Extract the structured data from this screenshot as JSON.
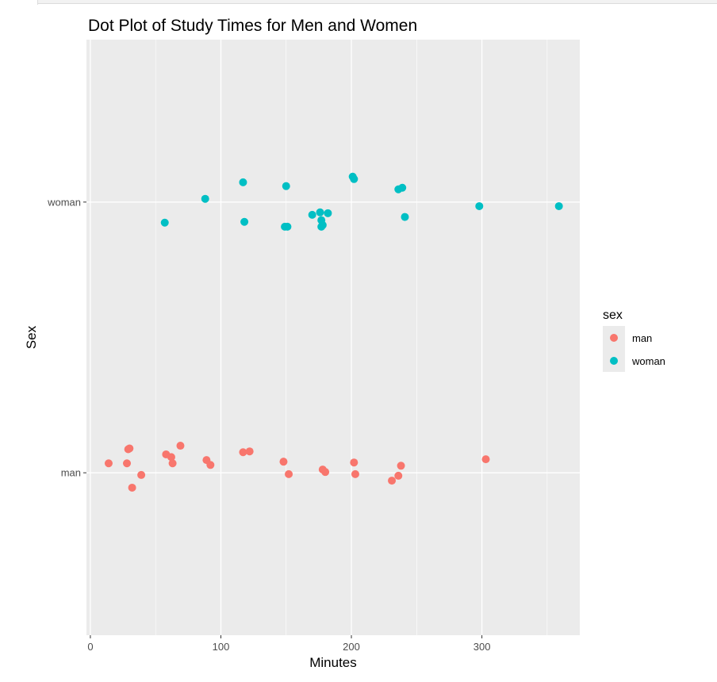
{
  "chart_data": {
    "type": "scatter",
    "title": "Dot Plot of Study Times for Men and Women",
    "xlabel": "Minutes",
    "ylabel": "Sex",
    "xlim": [
      -3,
      375
    ],
    "x_ticks": [
      {
        "value": 0,
        "label": "0"
      },
      {
        "value": 100,
        "label": "100"
      },
      {
        "value": 200,
        "label": "200"
      },
      {
        "value": 300,
        "label": "300"
      }
    ],
    "y_categories": [
      "man",
      "woman"
    ],
    "grid": true,
    "legend": {
      "title": "sex",
      "position": "right",
      "entries": [
        {
          "label": "man",
          "color": "#F8766D"
        },
        {
          "label": "woman",
          "color": "#00BFC4"
        }
      ]
    },
    "series": [
      {
        "name": "man",
        "color": "#F8766D",
        "category": "man",
        "points": [
          {
            "x": 14,
            "jitter": 0.035
          },
          {
            "x": 28,
            "jitter": 0.035
          },
          {
            "x": 29,
            "jitter": 0.087
          },
          {
            "x": 30,
            "jitter": 0.09
          },
          {
            "x": 32,
            "jitter": -0.055
          },
          {
            "x": 39,
            "jitter": -0.008
          },
          {
            "x": 58,
            "jitter": 0.068
          },
          {
            "x": 62,
            "jitter": 0.058
          },
          {
            "x": 63,
            "jitter": 0.035
          },
          {
            "x": 69,
            "jitter": 0.1
          },
          {
            "x": 89,
            "jitter": 0.047
          },
          {
            "x": 92,
            "jitter": 0.029
          },
          {
            "x": 117,
            "jitter": 0.076
          },
          {
            "x": 122,
            "jitter": 0.079
          },
          {
            "x": 148,
            "jitter": 0.041
          },
          {
            "x": 152,
            "jitter": -0.005
          },
          {
            "x": 178,
            "jitter": 0.012
          },
          {
            "x": 180,
            "jitter": 0.003
          },
          {
            "x": 202,
            "jitter": 0.038
          },
          {
            "x": 203,
            "jitter": -0.005
          },
          {
            "x": 231,
            "jitter": -0.029
          },
          {
            "x": 236,
            "jitter": -0.011
          },
          {
            "x": 238,
            "jitter": 0.026
          },
          {
            "x": 303,
            "jitter": 0.05
          }
        ]
      },
      {
        "name": "woman",
        "color": "#00BFC4",
        "category": "woman",
        "points": [
          {
            "x": 57,
            "jitter": -0.076
          },
          {
            "x": 88,
            "jitter": 0.012
          },
          {
            "x": 117,
            "jitter": 0.073
          },
          {
            "x": 118,
            "jitter": -0.073
          },
          {
            "x": 149,
            "jitter": -0.091
          },
          {
            "x": 150,
            "jitter": 0.059
          },
          {
            "x": 151,
            "jitter": -0.091
          },
          {
            "x": 170,
            "jitter": -0.047
          },
          {
            "x": 176,
            "jitter": -0.038
          },
          {
            "x": 177,
            "jitter": -0.067
          },
          {
            "x": 177,
            "jitter": -0.091
          },
          {
            "x": 178,
            "jitter": -0.085
          },
          {
            "x": 182,
            "jitter": -0.041
          },
          {
            "x": 201,
            "jitter": 0.094
          },
          {
            "x": 202,
            "jitter": 0.085
          },
          {
            "x": 236,
            "jitter": 0.047
          },
          {
            "x": 239,
            "jitter": 0.053
          },
          {
            "x": 241,
            "jitter": -0.055
          },
          {
            "x": 298,
            "jitter": -0.015
          },
          {
            "x": 359,
            "jitter": -0.015
          }
        ]
      }
    ]
  }
}
